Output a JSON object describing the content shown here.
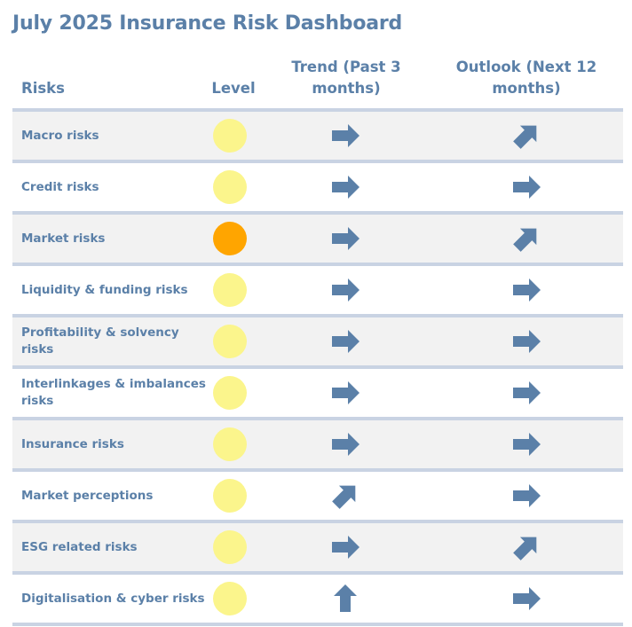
{
  "title": "July 2025 Insurance Risk Dashboard",
  "headers": {
    "risks": "Risks",
    "level": "Level",
    "trend": "Trend (Past 3 months)",
    "outlook": "Outlook (Next 12 months)"
  },
  "colors": {
    "text": "#5b80a8",
    "arrow": "#5b80a8",
    "divider": "#c9d3e3",
    "row_shade": "#f2f2f2",
    "level_medium": "#fbf58c",
    "level_high": "#ffa500"
  },
  "chart_data": {
    "type": "table",
    "columns": [
      "Risks",
      "Level",
      "Trend (Past 3 months)",
      "Outlook (Next 12 months)"
    ],
    "rows": [
      {
        "risk": "Macro risks",
        "level": "medium",
        "trend": "stable",
        "outlook": "increasing"
      },
      {
        "risk": "Credit risks",
        "level": "medium",
        "trend": "stable",
        "outlook": "stable"
      },
      {
        "risk": "Market risks",
        "level": "high",
        "trend": "stable",
        "outlook": "increasing"
      },
      {
        "risk": "Liquidity & funding risks",
        "level": "medium",
        "trend": "stable",
        "outlook": "stable"
      },
      {
        "risk": "Profitability & solvency risks",
        "level": "medium",
        "trend": "stable",
        "outlook": "stable"
      },
      {
        "risk": "Interlinkages & imbalances risks",
        "level": "medium",
        "trend": "stable",
        "outlook": "stable"
      },
      {
        "risk": "Insurance risks",
        "level": "medium",
        "trend": "stable",
        "outlook": "stable"
      },
      {
        "risk": "Market perceptions",
        "level": "medium",
        "trend": "increasing",
        "outlook": "stable"
      },
      {
        "risk": "ESG related risks",
        "level": "medium",
        "trend": "stable",
        "outlook": "increasing"
      },
      {
        "risk": "Digitalisation & cyber risks",
        "level": "medium",
        "trend": "substantial increase",
        "outlook": "stable"
      }
    ]
  }
}
